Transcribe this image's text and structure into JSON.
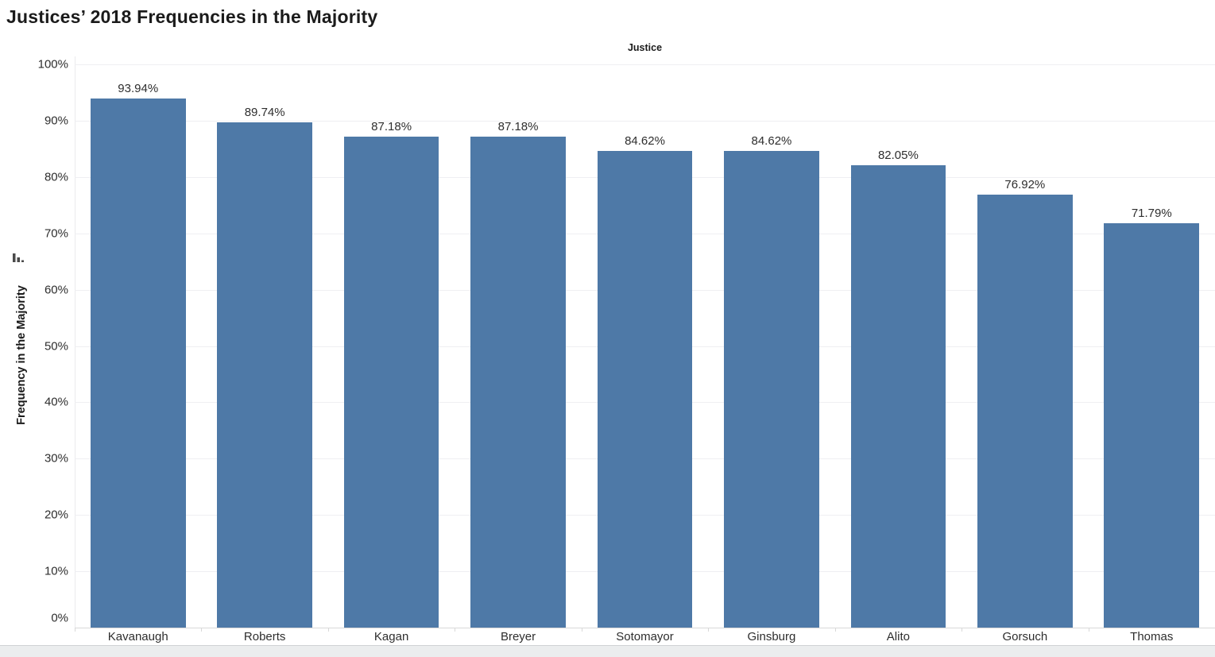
{
  "chart_data": {
    "type": "bar",
    "title": "Justices’ 2018 Frequencies in the Majority",
    "column_header": "Justice",
    "xlabel": "Justice",
    "ylabel": "Frequency in the Majority",
    "categories": [
      "Kavanaugh",
      "Roberts",
      "Kagan",
      "Breyer",
      "Sotomayor",
      "Ginsburg",
      "Alito",
      "Gorsuch",
      "Thomas"
    ],
    "values": [
      93.94,
      89.74,
      87.18,
      87.18,
      84.62,
      84.62,
      82.05,
      76.92,
      71.79
    ],
    "value_labels": [
      "93.94%",
      "89.74%",
      "87.18%",
      "87.18%",
      "84.62%",
      "84.62%",
      "82.05%",
      "76.92%",
      "71.79%"
    ],
    "yticks": [
      0,
      10,
      20,
      30,
      40,
      50,
      60,
      70,
      80,
      90,
      100
    ],
    "ytick_labels": [
      "0%",
      "10%",
      "20%",
      "30%",
      "40%",
      "50%",
      "60%",
      "70%",
      "80%",
      "90%",
      "100%"
    ],
    "ylim": [
      0,
      100
    ],
    "grid": "horizontal",
    "legend": "none",
    "sort": "descending",
    "bar_color": "#4e79a7",
    "icons": {
      "sort_indicator": "sort-descending-icon"
    }
  }
}
